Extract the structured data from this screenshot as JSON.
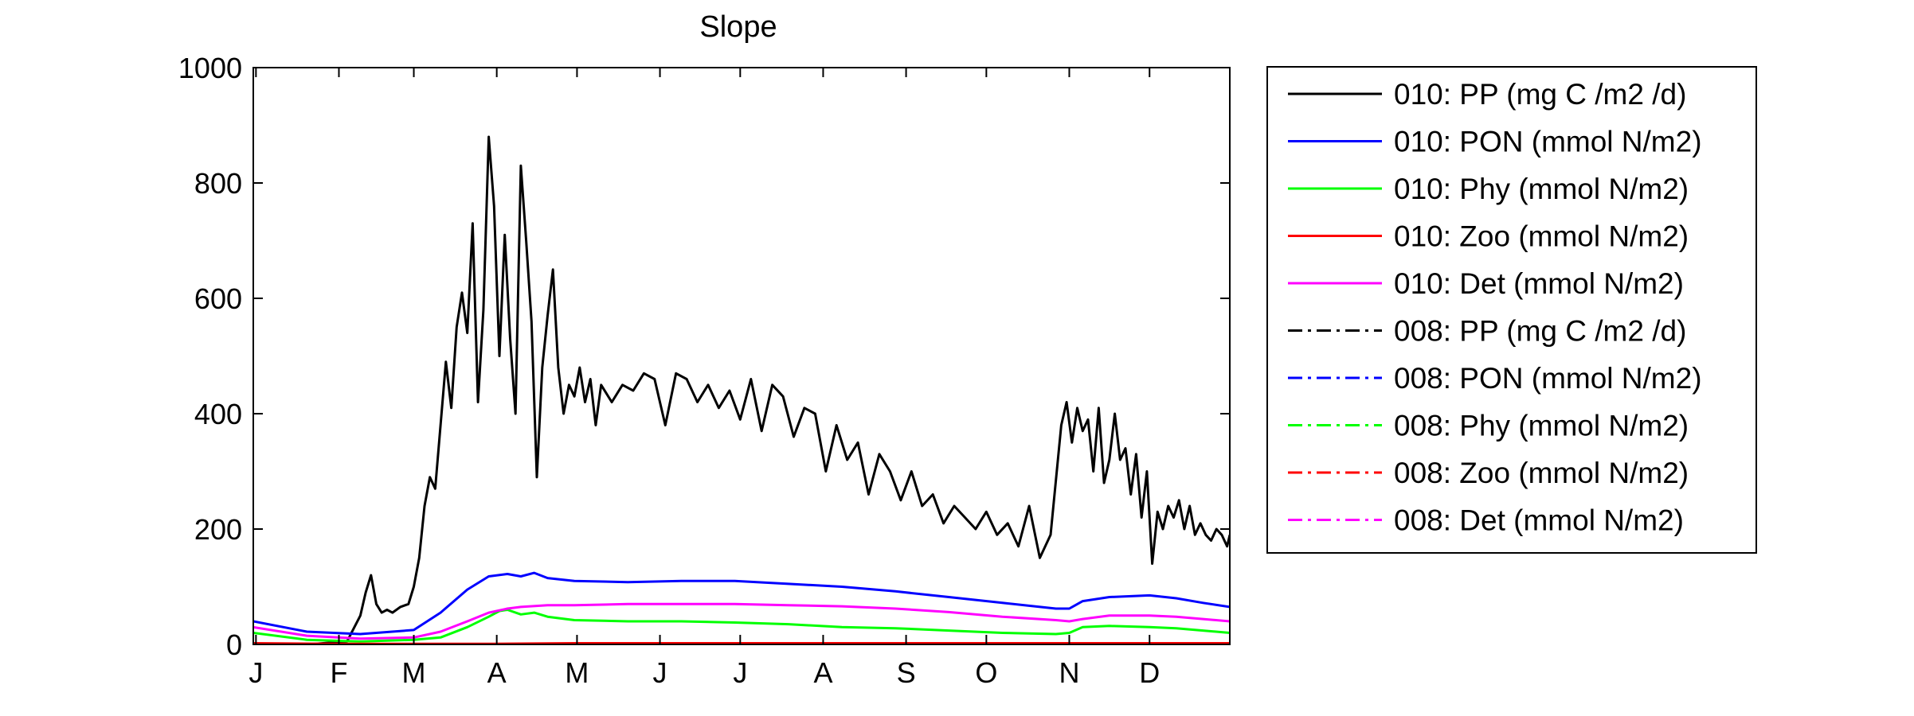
{
  "chart_data": {
    "type": "line",
    "title": "Slope",
    "xlabel": "",
    "ylabel": "",
    "xlim": [
      0,
      365
    ],
    "ylim": [
      0,
      1000
    ],
    "yticks": [
      0,
      200,
      400,
      600,
      800,
      1000
    ],
    "month_ticks": [
      {
        "day": 1,
        "label": "J"
      },
      {
        "day": 32,
        "label": "F"
      },
      {
        "day": 60,
        "label": "M"
      },
      {
        "day": 91,
        "label": "A"
      },
      {
        "day": 121,
        "label": "M"
      },
      {
        "day": 152,
        "label": "J"
      },
      {
        "day": 182,
        "label": "J"
      },
      {
        "day": 213,
        "label": "A"
      },
      {
        "day": 244,
        "label": "S"
      },
      {
        "day": 274,
        "label": "O"
      },
      {
        "day": 305,
        "label": "N"
      },
      {
        "day": 335,
        "label": "D"
      }
    ],
    "grid": false,
    "legend_position": "right, outside plot",
    "series": [
      {
        "name": "010: PP (mg C /m2 /d)",
        "color": "#000000",
        "style": "solid",
        "x": [
          0,
          20,
          35,
          40,
          42,
          44,
          46,
          48,
          50,
          52,
          55,
          58,
          60,
          62,
          64,
          66,
          68,
          70,
          72,
          74,
          76,
          78,
          80,
          82,
          84,
          86,
          88,
          90,
          92,
          94,
          96,
          98,
          100,
          102,
          104,
          106,
          108,
          110,
          112,
          114,
          116,
          118,
          120,
          122,
          124,
          126,
          128,
          130,
          134,
          138,
          142,
          146,
          150,
          154,
          158,
          162,
          166,
          170,
          174,
          178,
          182,
          186,
          190,
          194,
          198,
          202,
          206,
          210,
          214,
          218,
          222,
          226,
          230,
          234,
          238,
          242,
          246,
          250,
          254,
          258,
          262,
          266,
          270,
          274,
          278,
          282,
          286,
          290,
          294,
          298,
          302,
          304,
          306,
          308,
          310,
          312,
          314,
          316,
          318,
          320,
          322,
          324,
          326,
          328,
          330,
          332,
          334,
          336,
          338,
          340,
          342,
          344,
          346,
          348,
          350,
          352,
          354,
          356,
          358,
          360,
          362,
          364,
          365
        ],
        "y": [
          0,
          0,
          5,
          50,
          90,
          120,
          70,
          55,
          60,
          55,
          65,
          70,
          100,
          150,
          240,
          290,
          270,
          380,
          490,
          410,
          550,
          610,
          540,
          730,
          420,
          580,
          880,
          760,
          500,
          710,
          530,
          400,
          830,
          700,
          560,
          290,
          480,
          570,
          650,
          480,
          400,
          450,
          430,
          480,
          420,
          460,
          380,
          450,
          420,
          450,
          440,
          470,
          460,
          380,
          470,
          460,
          420,
          450,
          410,
          440,
          390,
          460,
          370,
          450,
          430,
          360,
          410,
          400,
          300,
          380,
          320,
          350,
          260,
          330,
          300,
          250,
          300,
          240,
          260,
          210,
          240,
          220,
          200,
          230,
          190,
          210,
          170,
          240,
          150,
          190,
          380,
          420,
          350,
          410,
          370,
          390,
          300,
          410,
          280,
          320,
          400,
          320,
          340,
          260,
          330,
          220,
          300,
          140,
          230,
          200,
          240,
          220,
          250,
          200,
          240,
          190,
          210,
          190,
          180,
          200,
          190,
          170,
          190
        ]
      },
      {
        "name": "010: PON (mmol N/m2)",
        "color": "#0000ff",
        "style": "solid",
        "x": [
          0,
          20,
          40,
          60,
          70,
          80,
          88,
          95,
          100,
          105,
          110,
          120,
          140,
          160,
          180,
          200,
          220,
          240,
          260,
          280,
          300,
          305,
          310,
          320,
          335,
          345,
          355,
          365
        ],
        "y": [
          40,
          22,
          18,
          25,
          55,
          95,
          118,
          122,
          118,
          124,
          115,
          110,
          108,
          110,
          110,
          105,
          100,
          92,
          82,
          72,
          62,
          62,
          75,
          82,
          85,
          80,
          72,
          65
        ]
      },
      {
        "name": "010: Phy (mmol N/m2)",
        "color": "#00ff00",
        "style": "solid",
        "x": [
          0,
          20,
          40,
          60,
          70,
          80,
          88,
          92,
          95,
          100,
          105,
          110,
          120,
          140,
          160,
          180,
          200,
          220,
          240,
          260,
          280,
          300,
          305,
          310,
          320,
          335,
          345,
          355,
          365
        ],
        "y": [
          20,
          8,
          5,
          8,
          12,
          30,
          48,
          58,
          60,
          52,
          55,
          48,
          42,
          40,
          40,
          38,
          35,
          30,
          28,
          24,
          20,
          18,
          20,
          30,
          32,
          30,
          28,
          24,
          20
        ]
      },
      {
        "name": "010: Zoo (mmol N/m2)",
        "color": "#ff0000",
        "style": "solid",
        "x": [
          0,
          30,
          60,
          90,
          120,
          150,
          180,
          210,
          240,
          270,
          300,
          330,
          365
        ],
        "y": [
          2,
          1,
          1,
          1,
          2,
          2,
          2,
          2,
          2,
          2,
          2,
          2,
          2
        ]
      },
      {
        "name": "010: Det (mmol N/m2)",
        "color": "#ff00ff",
        "style": "solid",
        "x": [
          0,
          20,
          40,
          60,
          70,
          80,
          88,
          95,
          100,
          110,
          120,
          140,
          160,
          180,
          200,
          220,
          240,
          260,
          280,
          300,
          305,
          310,
          320,
          335,
          345,
          355,
          365
        ],
        "y": [
          30,
          15,
          10,
          12,
          22,
          40,
          55,
          62,
          65,
          68,
          68,
          70,
          70,
          70,
          68,
          66,
          62,
          56,
          48,
          42,
          40,
          44,
          50,
          50,
          48,
          44,
          40
        ]
      },
      {
        "name": "008: PP (mg C /m2 /d)",
        "color": "#000000",
        "style": "dashdot"
      },
      {
        "name": "008: PON (mmol N/m2)",
        "color": "#0000ff",
        "style": "dashdot"
      },
      {
        "name": "008: Phy (mmol N/m2)",
        "color": "#00ff00",
        "style": "dashdot"
      },
      {
        "name": "008: Zoo (mmol N/m2)",
        "color": "#ff0000",
        "style": "dashdot"
      },
      {
        "name": "008: Det (mmol N/m2)",
        "color": "#ff00ff",
        "style": "dashdot"
      }
    ]
  }
}
